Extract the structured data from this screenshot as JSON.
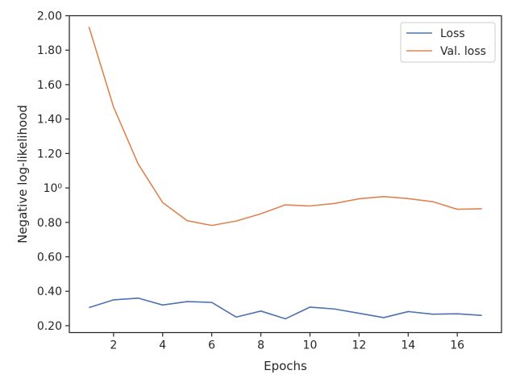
{
  "chart_data": {
    "type": "line",
    "title": "",
    "xlabel": "Epochs",
    "ylabel": "Negative log-likelihood",
    "xlim": [
      0.2,
      17.8
    ],
    "ylim": [
      0.16,
      2.0
    ],
    "x_ticks": [
      2,
      4,
      6,
      8,
      10,
      12,
      14,
      16
    ],
    "x_tick_labels": [
      "2",
      "4",
      "6",
      "8",
      "10",
      "12",
      "14",
      "16"
    ],
    "y_ticks": [
      0.2,
      0.4,
      0.6,
      0.8,
      1.0,
      1.2,
      1.4,
      1.6,
      1.8,
      2.0
    ],
    "y_tick_labels": [
      "0.20",
      "0.40",
      "0.60",
      "0.80",
      "10⁰",
      "1.20",
      "1.40",
      "1.60",
      "1.80",
      "2.00"
    ],
    "grid": false,
    "legend_position": "top-right",
    "x": [
      1,
      2,
      3,
      4,
      5,
      6,
      7,
      8,
      9,
      10,
      11,
      12,
      13,
      14,
      15,
      16,
      17
    ],
    "series": [
      {
        "name": "Loss",
        "color": "#4c72b0",
        "values": [
          0.305,
          0.35,
          0.36,
          0.32,
          0.34,
          0.335,
          0.25,
          0.285,
          0.24,
          0.308,
          0.297,
          0.272,
          0.247,
          0.282,
          0.267,
          0.269,
          0.26
        ]
      },
      {
        "name": "Val. loss",
        "color": "#dd8452",
        "values": [
          1.935,
          1.47,
          1.14,
          0.915,
          0.81,
          0.782,
          0.808,
          0.85,
          0.902,
          0.895,
          0.91,
          0.937,
          0.95,
          0.938,
          0.92,
          0.876,
          0.879
        ]
      }
    ]
  }
}
